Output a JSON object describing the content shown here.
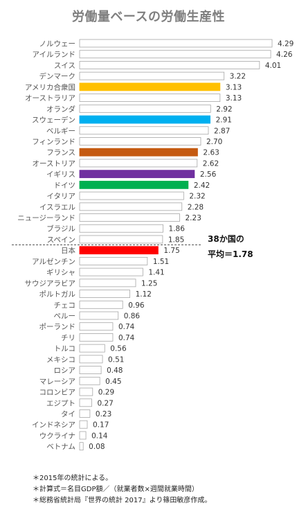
{
  "chart_data": {
    "type": "bar",
    "title": "労働量ベースの労働生産性",
    "categories": [
      "ノルウェー",
      "アイルランド",
      "スイス",
      "デンマーク",
      "アメリカ合衆国",
      "オーストラリア",
      "オランダ",
      "スウェーデン",
      "ベルギー",
      "フィンランド",
      "フランス",
      "オーストリア",
      "イギリス",
      "ドイツ",
      "イタリア",
      "イスラエル",
      "ニュージーランド",
      "ブラジル",
      "スペイン",
      "日本",
      "アルゼンチン",
      "ギリシャ",
      "サウジアラビア",
      "ポルトガル",
      "チェコ",
      "ペルー",
      "ポーランド",
      "チリ",
      "トルコ",
      "メキシコ",
      "ロシア",
      "マレーシア",
      "コロンビア",
      "エジプト",
      "タイ",
      "インドネシア",
      "ウクライナ",
      "ベトナム"
    ],
    "values": [
      4.29,
      4.26,
      4.01,
      3.22,
      3.13,
      3.13,
      2.92,
      2.91,
      2.87,
      2.7,
      2.63,
      2.62,
      2.56,
      2.42,
      2.32,
      2.28,
      2.23,
      1.86,
      1.85,
      1.75,
      1.51,
      1.41,
      1.25,
      1.12,
      0.96,
      0.86,
      0.74,
      0.74,
      0.56,
      0.51,
      0.48,
      0.45,
      0.29,
      0.27,
      0.23,
      0.17,
      0.14,
      0.08
    ],
    "value_labels": [
      "4.29",
      "4.26",
      "4.01",
      "3.22",
      "3.13",
      "3.13",
      "2.92",
      "2.91",
      "2.87",
      "2.70",
      "2.63",
      "2.62",
      "2.56",
      "2.42",
      "2.32",
      "2.28",
      "2.23",
      "1.86",
      "1.85",
      "1.75",
      "1.51",
      "1.41",
      "1.25",
      "1.12",
      "0.96",
      "0.86",
      "0.74",
      "0.74",
      "0.56",
      "0.51",
      "0.48",
      "0.45",
      "0.29",
      "0.27",
      "0.23",
      "0.17",
      "0.14",
      "0.08"
    ],
    "highlight_colors": {
      "アメリカ合衆国": "#ffc000",
      "スウェーデン": "#00b0f0",
      "フランス": "#c55a11",
      "イギリス": "#7030a0",
      "ドイツ": "#00b050",
      "日本": "#ff0000"
    },
    "default_bar_fill": "#ffffff",
    "bar_outline": "#a6a6a6",
    "average": {
      "value": 1.78,
      "line1": "38か国の",
      "line2_prefix": "平均＝",
      "line2_value": "1.78"
    },
    "grid": false,
    "legend": "none"
  },
  "notes": [
    "＊2015年の統計による。",
    "＊計算式＝名目GDP額／（就業者数×週間就業時間）",
    "＊総務省統計局『世界の統計 2017』より篠田敏彦作成。"
  ]
}
